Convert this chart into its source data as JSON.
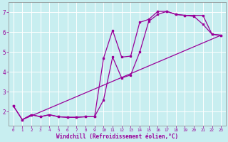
{
  "xlabel": "Windchill (Refroidissement éolien,°C)",
  "background_color": "#c8eef0",
  "grid_color": "#b8dfe2",
  "line_color": "#990099",
  "xlim": [
    -0.5,
    23.5
  ],
  "ylim": [
    1.3,
    7.5
  ],
  "yticks": [
    2,
    3,
    4,
    5,
    6,
    7
  ],
  "xticks": [
    0,
    1,
    2,
    3,
    4,
    5,
    6,
    7,
    8,
    9,
    10,
    11,
    12,
    13,
    14,
    15,
    16,
    17,
    18,
    19,
    20,
    21,
    22,
    23
  ],
  "line1_x": [
    0,
    1,
    2,
    3,
    4,
    5,
    6,
    7,
    8,
    9,
    10,
    11,
    12,
    13,
    14,
    15,
    16,
    17,
    18,
    19,
    20,
    21,
    22,
    23
  ],
  "line1_y": [
    2.3,
    1.6,
    1.85,
    1.75,
    1.85,
    1.75,
    1.72,
    1.72,
    1.75,
    1.75,
    2.6,
    4.75,
    3.7,
    3.85,
    5.0,
    6.55,
    6.9,
    7.05,
    6.9,
    6.85,
    6.8,
    6.4,
    5.9,
    5.85
  ],
  "line2_x": [
    0,
    1,
    2,
    3,
    4,
    5,
    6,
    7,
    8,
    9,
    10,
    11,
    12,
    13,
    14,
    15,
    16,
    17,
    18,
    19,
    20,
    21,
    22,
    23
  ],
  "line2_y": [
    2.3,
    1.6,
    1.85,
    1.75,
    1.85,
    1.75,
    1.72,
    1.72,
    1.75,
    1.75,
    4.7,
    6.1,
    4.75,
    4.8,
    6.5,
    6.65,
    7.05,
    7.05,
    6.9,
    6.85,
    6.85,
    6.85,
    5.9,
    5.85
  ],
  "line3_x": [
    1,
    23
  ],
  "line3_y": [
    1.6,
    5.85
  ]
}
